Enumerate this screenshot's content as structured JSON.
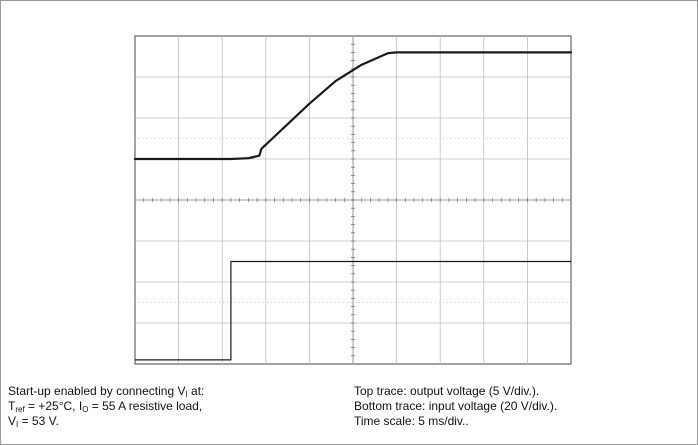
{
  "chart_data": {
    "type": "line",
    "grid": true,
    "divisions": {
      "x": 10,
      "y": 8
    },
    "series": [
      {
        "points": [
          [
            0,
            5.0
          ],
          [
            2.2,
            5.0
          ],
          [
            2.6,
            5.02
          ],
          [
            2.85,
            5.08
          ],
          [
            2.9,
            5.25
          ],
          [
            3.2,
            5.55
          ],
          [
            4.0,
            6.35
          ],
          [
            4.6,
            6.9
          ],
          [
            5.2,
            7.3
          ],
          [
            5.8,
            7.58
          ],
          [
            6.0,
            7.6
          ],
          [
            10.0,
            7.6
          ]
        ],
        "color": "#1a1a1a",
        "stroke": 2.2
      },
      {
        "points": [
          [
            0,
            0.1
          ],
          [
            2.2,
            0.1
          ],
          [
            2.2,
            2.5
          ],
          [
            10.0,
            2.5
          ]
        ],
        "color": "#1a1a1a",
        "stroke": 1.2
      }
    ]
  },
  "caption": {
    "left": {
      "line1_pre": "Start-up enabled by connecting V",
      "line1_sub": "I",
      "line1_post": " at:",
      "line2_t": "T",
      "line2_t_sub": "ref",
      "line2_mid": " = +25°C, I",
      "line2_i_sub": "O",
      "line2_post": " = 55 A resistive load,",
      "line3_v": "V",
      "line3_v_sub": "I",
      "line3_post": " = 53 V."
    },
    "right": {
      "line1": "Top trace: output voltage (5 V/div.).",
      "line2": "Bottom trace: input voltage (20 V/div.).",
      "line3": "Time scale: 5 ms/div.."
    }
  }
}
